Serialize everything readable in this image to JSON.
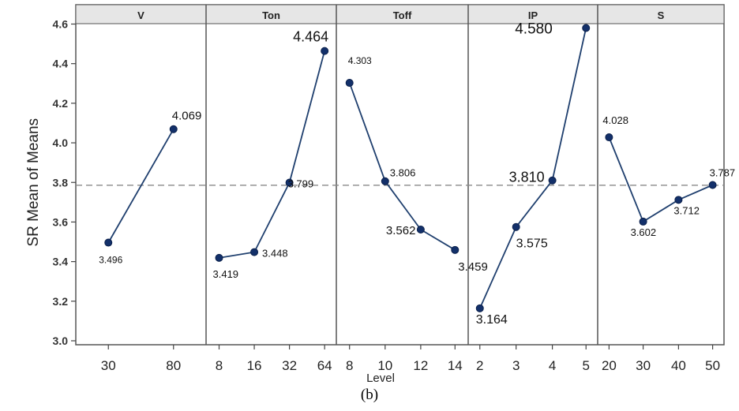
{
  "chart_data": {
    "type": "line",
    "ylabel": "SR Mean of Means",
    "xlabel": "Level",
    "ylim": [
      3.0,
      4.6
    ],
    "yticks": [
      3.0,
      3.2,
      3.4,
      3.6,
      3.8,
      4.0,
      4.2,
      4.4,
      4.6
    ],
    "reference_line": 3.786,
    "grid": false,
    "colors": {
      "line": "#1f3f6e",
      "marker": "#13306a",
      "reference": "#8a8a8a",
      "panel_header": "#e6e6e6"
    },
    "panels": [
      {
        "name": "V",
        "levels": [
          "30",
          "80"
        ],
        "values": [
          3.496,
          4.069
        ],
        "labels": [
          "3.496",
          "4.069"
        ]
      },
      {
        "name": "Ton",
        "levels": [
          "8",
          "16",
          "32",
          "64"
        ],
        "values": [
          3.419,
          3.448,
          3.799,
          4.464
        ],
        "labels": [
          "3.419",
          "3.448",
          "3.799",
          "4.464"
        ]
      },
      {
        "name": "Toff",
        "levels": [
          "8",
          "10",
          "12",
          "14"
        ],
        "values": [
          4.303,
          3.806,
          3.562,
          3.459
        ],
        "labels": [
          "4.303",
          "3.806",
          "3.562",
          "3.459"
        ]
      },
      {
        "name": "IP",
        "levels": [
          "2",
          "3",
          "4",
          "5"
        ],
        "values": [
          3.164,
          3.575,
          3.81,
          4.58
        ],
        "labels": [
          "3.164",
          "3.575",
          "3.810",
          "4.580"
        ]
      },
      {
        "name": "S",
        "levels": [
          "20",
          "30",
          "40",
          "50"
        ],
        "values": [
          4.028,
          3.602,
          3.712,
          3.787
        ],
        "labels": [
          "4.028",
          "3.602",
          "3.712",
          "3.787"
        ]
      }
    ]
  },
  "caption": "(b)"
}
